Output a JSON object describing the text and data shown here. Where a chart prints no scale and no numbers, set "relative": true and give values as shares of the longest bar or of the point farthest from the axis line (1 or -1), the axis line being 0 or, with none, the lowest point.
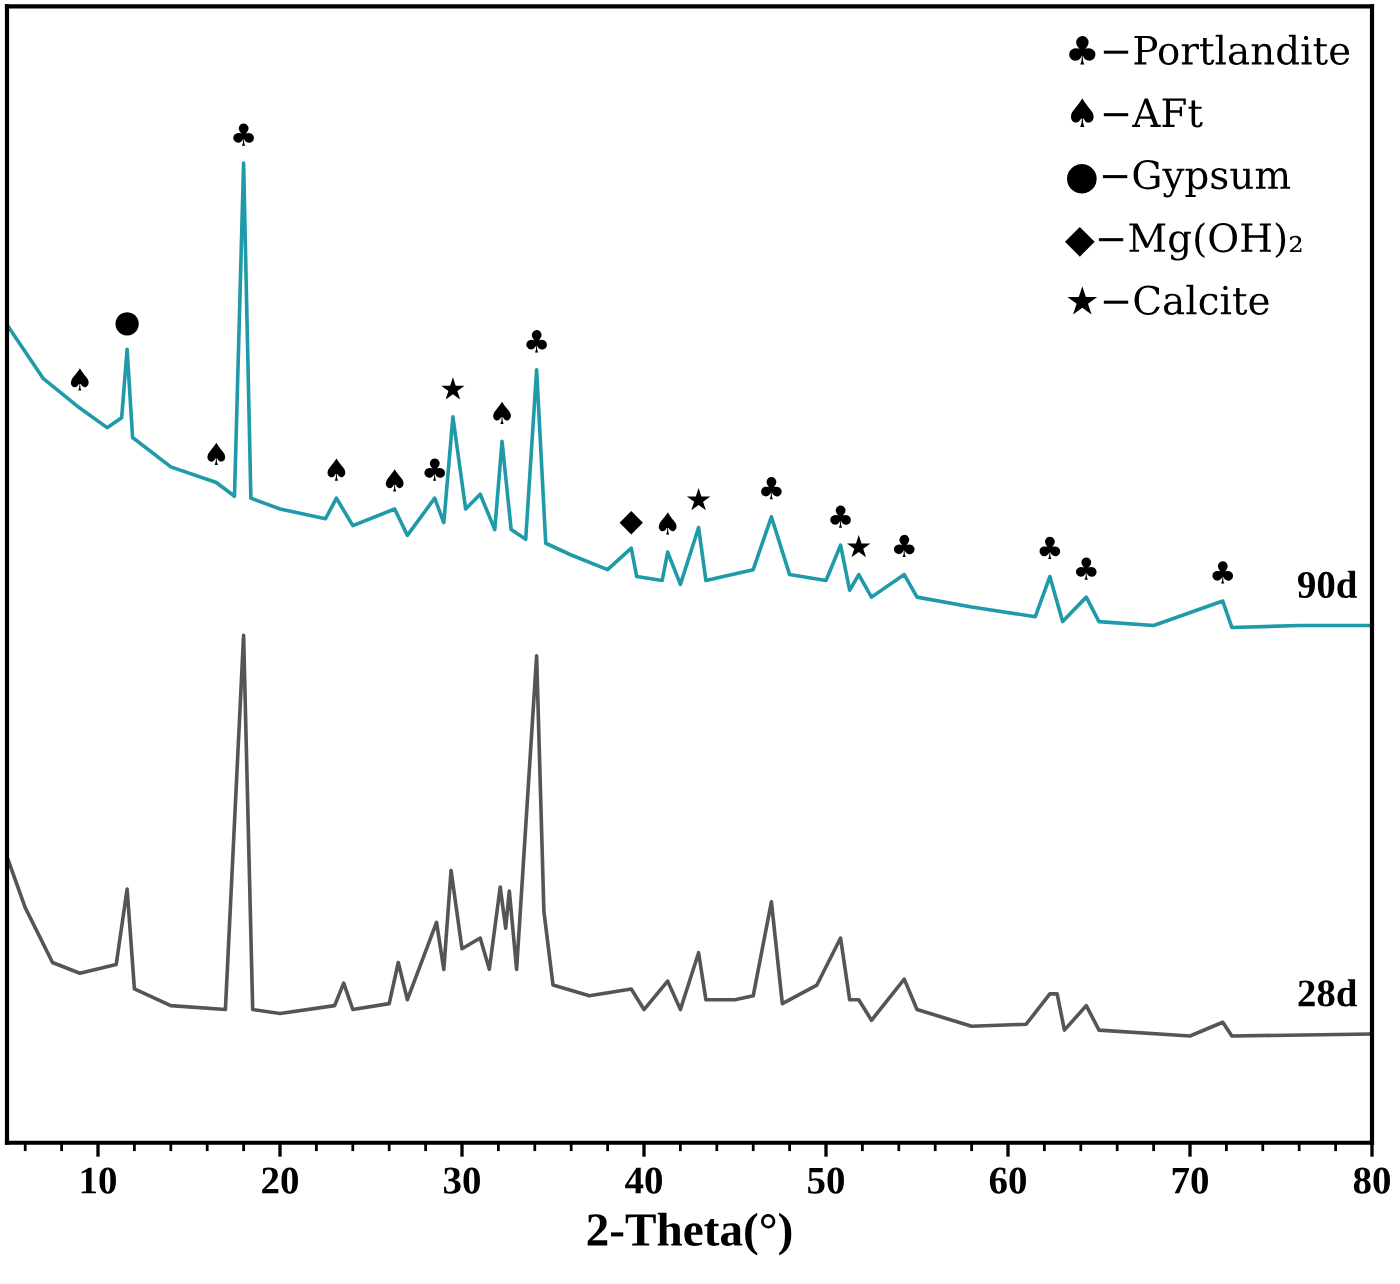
{
  "chart_data": {
    "type": "line",
    "relative": true,
    "xlabel": "2-Theta(°)",
    "xlim": [
      5,
      80
    ],
    "xticks": [
      10,
      20,
      30,
      40,
      50,
      60,
      70,
      80,
      {
        "value": 6,
        "label": null
      },
      {
        "value": 8,
        "label": null
      },
      {
        "value": 12,
        "label": null
      },
      {
        "value": 14,
        "label": null
      },
      {
        "value": 16,
        "label": null
      },
      {
        "value": 18,
        "label": null
      },
      {
        "value": 22,
        "label": null
      },
      {
        "value": 24,
        "label": null
      },
      {
        "value": 26,
        "label": null
      },
      {
        "value": 28,
        "label": null
      },
      {
        "value": 32,
        "label": null
      },
      {
        "value": 34,
        "label": null
      },
      {
        "value": 36,
        "label": null
      },
      {
        "value": 38,
        "label": null
      },
      {
        "value": 42,
        "label": null
      },
      {
        "value": 44,
        "label": null
      },
      {
        "value": 46,
        "label": null
      },
      {
        "value": 48,
        "label": null
      },
      {
        "value": 52,
        "label": null
      },
      {
        "value": 54,
        "label": null
      },
      {
        "value": 56,
        "label": null
      },
      {
        "value": 58,
        "label": null
      },
      {
        "value": 62,
        "label": null
      },
      {
        "value": 64,
        "label": null
      },
      {
        "value": 66,
        "label": null
      },
      {
        "value": 68,
        "label": null
      },
      {
        "value": 72,
        "label": null
      },
      {
        "value": 74,
        "label": null
      },
      {
        "value": 76,
        "label": null
      },
      {
        "value": 78,
        "label": null
      }
    ],
    "tick_labels": "x",
    "grid": false,
    "legend": false,
    "marker": "none",
    "line_style": "solid",
    "series": [
      {
        "name": "90d",
        "color": "#1f9aa8",
        "x": [
          5,
          7,
          9,
          10.5,
          11.3,
          11.6,
          11.9,
          14,
          16.5,
          17.5,
          18,
          18.4,
          20,
          22.5,
          23.1,
          24,
          26.3,
          27,
          28.5,
          29,
          29.5,
          30.2,
          31,
          31.8,
          32.2,
          32.7,
          33.5,
          34.1,
          34.6,
          36,
          38,
          39.3,
          39.6,
          41,
          41.3,
          42,
          43,
          43.4,
          46,
          47,
          48,
          50,
          50.8,
          51.3,
          51.8,
          52.5,
          54.3,
          55,
          58,
          61.5,
          62.3,
          63,
          64.3,
          65,
          68,
          71.8,
          72.3,
          76,
          80
        ],
        "values": [
          0.835,
          0.78,
          0.75,
          0.73,
          0.74,
          0.81,
          0.72,
          0.69,
          0.674,
          0.66,
          1.0,
          0.658,
          0.647,
          0.637,
          0.658,
          0.63,
          0.647,
          0.62,
          0.658,
          0.633,
          0.741,
          0.647,
          0.662,
          0.626,
          0.716,
          0.626,
          0.616,
          0.789,
          0.612,
          0.6,
          0.585,
          0.607,
          0.578,
          0.574,
          0.603,
          0.57,
          0.628,
          0.574,
          0.585,
          0.639,
          0.58,
          0.574,
          0.61,
          0.564,
          0.58,
          0.557,
          0.58,
          0.557,
          0.547,
          0.537,
          0.578,
          0.532,
          0.557,
          0.532,
          0.528,
          0.553,
          0.526,
          0.528,
          0.528
        ]
      },
      {
        "name": "28d",
        "color": "#555555",
        "x": [
          5,
          6,
          7.5,
          9,
          11,
          11.6,
          12,
          14,
          17,
          18,
          18.5,
          20,
          23,
          23.5,
          24,
          26,
          26.5,
          27,
          28.6,
          29,
          29.4,
          30,
          31,
          31.5,
          32.1,
          32.4,
          32.6,
          33,
          34.1,
          34.5,
          35,
          37,
          39.3,
          40,
          41.3,
          42,
          43,
          43.4,
          45,
          46,
          47,
          47.6,
          49.5,
          50.8,
          51.3,
          51.8,
          52.5,
          54.3,
          55,
          58,
          61,
          62.3,
          62.7,
          63.1,
          64.3,
          65,
          70,
          71.8,
          72.3,
          80
        ],
        "values": [
          0.292,
          0.24,
          0.184,
          0.173,
          0.182,
          0.259,
          0.157,
          0.14,
          0.136,
          0.518,
          0.136,
          0.132,
          0.14,
          0.163,
          0.136,
          0.142,
          0.184,
          0.146,
          0.225,
          0.177,
          0.278,
          0.198,
          0.209,
          0.177,
          0.261,
          0.219,
          0.257,
          0.177,
          0.497,
          0.236,
          0.161,
          0.15,
          0.157,
          0.136,
          0.165,
          0.136,
          0.194,
          0.146,
          0.146,
          0.15,
          0.246,
          0.142,
          0.161,
          0.209,
          0.146,
          0.146,
          0.125,
          0.167,
          0.136,
          0.119,
          0.121,
          0.152,
          0.152,
          0.115,
          0.14,
          0.115,
          0.109,
          0.123,
          0.109,
          0.111
        ]
      }
    ],
    "annotations": [
      {
        "text": "♠",
        "x": 9,
        "y": 0.75
      },
      {
        "text": "●",
        "x": 11.6,
        "y": 0.81
      },
      {
        "text": "♠",
        "x": 16.5,
        "y": 0.674
      },
      {
        "text": "♣",
        "x": 18,
        "y": 1.0
      },
      {
        "text": "♠",
        "x": 23.1,
        "y": 0.658
      },
      {
        "text": "♠",
        "x": 26.3,
        "y": 0.647
      },
      {
        "text": "♣",
        "x": 28.5,
        "y": 0.658
      },
      {
        "text": "★",
        "x": 29.5,
        "y": 0.741
      },
      {
        "text": "♠",
        "x": 32.2,
        "y": 0.716
      },
      {
        "text": "♣",
        "x": 34.1,
        "y": 0.789
      },
      {
        "text": "◆",
        "x": 39.3,
        "y": 0.607
      },
      {
        "text": "♠",
        "x": 41.3,
        "y": 0.603
      },
      {
        "text": "★",
        "x": 43,
        "y": 0.628
      },
      {
        "text": "♣",
        "x": 47,
        "y": 0.639
      },
      {
        "text": "♣",
        "x": 50.8,
        "y": 0.61
      },
      {
        "text": "★",
        "x": 51.8,
        "y": 0.58
      },
      {
        "text": "♣",
        "x": 54.3,
        "y": 0.58
      },
      {
        "text": "♣",
        "x": 62.3,
        "y": 0.578
      },
      {
        "text": "♣",
        "x": 64.3,
        "y": 0.557
      },
      {
        "text": "♣",
        "x": 71.8,
        "y": 0.553
      },
      "♣−Portlandite",
      "♠−AFt",
      "●−Gypsum",
      "◆−Mg(OH)₂",
      "★−Calcite"
    ]
  }
}
